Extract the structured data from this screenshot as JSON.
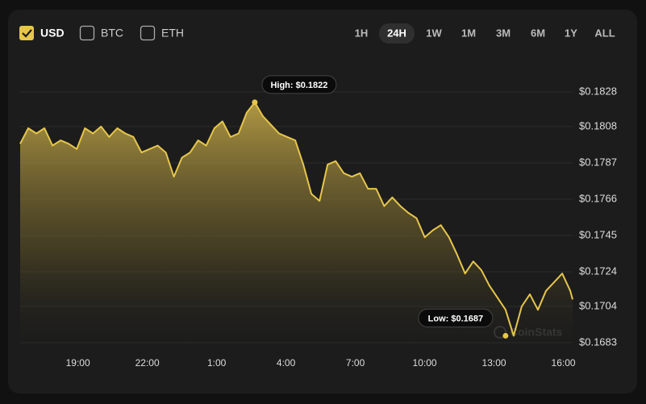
{
  "controls": {
    "currencies": [
      {
        "label": "USD",
        "checked": true
      },
      {
        "label": "BTC",
        "checked": false
      },
      {
        "label": "ETH",
        "checked": false
      }
    ],
    "timeframes": [
      {
        "label": "1H",
        "active": false
      },
      {
        "label": "24H",
        "active": true
      },
      {
        "label": "1W",
        "active": false
      },
      {
        "label": "1M",
        "active": false
      },
      {
        "label": "3M",
        "active": false
      },
      {
        "label": "6M",
        "active": false
      },
      {
        "label": "1Y",
        "active": false
      },
      {
        "label": "ALL",
        "active": false
      }
    ]
  },
  "watermark": "CoinStats",
  "chart_data": {
    "type": "area",
    "x": [
      16.5,
      16.85,
      17.2,
      17.55,
      17.9,
      18.25,
      18.6,
      18.95,
      19.3,
      19.65,
      20,
      20.35,
      20.7,
      21.05,
      21.4,
      21.75,
      22.1,
      22.45,
      22.8,
      23.15,
      23.5,
      23.85,
      24.2,
      24.55,
      24.9,
      25.25,
      25.6,
      25.95,
      26.3,
      26.65,
      27,
      27.35,
      27.7,
      28.05,
      28.4,
      28.75,
      29.1,
      29.45,
      29.8,
      30.15,
      30.5,
      30.85,
      31.2,
      31.55,
      31.9,
      32.25,
      32.6,
      32.95,
      33.3,
      33.65,
      34,
      34.35,
      34.7,
      35.05,
      35.4,
      35.75,
      36.1,
      36.45,
      36.8,
      37.15,
      37.5,
      37.85,
      38.2,
      38.55,
      38.9,
      39.25,
      39.6,
      39.95,
      40.3,
      40.4
    ],
    "series": [
      {
        "name": "USD",
        "color": "#e6c64b",
        "values": [
          0.1798,
          0.1807,
          0.1804,
          0.1807,
          0.1797,
          0.18,
          0.1798,
          0.1795,
          0.1807,
          0.1804,
          0.1808,
          0.1802,
          0.1807,
          0.1804,
          0.1802,
          0.1793,
          0.1795,
          0.1797,
          0.1793,
          0.1779,
          0.179,
          0.1793,
          0.18,
          0.1797,
          0.1807,
          0.1811,
          0.1802,
          0.1804,
          0.1816,
          0.1822,
          0.1814,
          0.1809,
          0.1804,
          0.1802,
          0.18,
          0.1786,
          0.1769,
          0.1765,
          0.1786,
          0.1788,
          0.1781,
          0.1779,
          0.1781,
          0.1772,
          0.1772,
          0.1762,
          0.1767,
          0.1762,
          0.1758,
          0.1755,
          0.1744,
          0.1748,
          0.1751,
          0.1744,
          0.1734,
          0.1723,
          0.173,
          0.1725,
          0.1716,
          0.1709,
          0.1702,
          0.1687,
          0.1704,
          0.1711,
          0.1702,
          0.1713,
          0.1718,
          0.1723,
          0.1713,
          0.1708
        ]
      }
    ],
    "xlim": [
      16.5,
      40.4
    ],
    "xticks": [
      {
        "value": 19,
        "label": "19:00"
      },
      {
        "value": 22,
        "label": "22:00"
      },
      {
        "value": 25,
        "label": "1:00"
      },
      {
        "value": 28,
        "label": "4:00"
      },
      {
        "value": 31,
        "label": "7:00"
      },
      {
        "value": 34,
        "label": "10:00"
      },
      {
        "value": 37,
        "label": "13:00"
      },
      {
        "value": 40,
        "label": "16:00"
      }
    ],
    "ylim": [
      0.1683,
      0.1828
    ],
    "yticks": [
      {
        "value": 0.1683,
        "label": "$0.1683"
      },
      {
        "value": 0.1704,
        "label": "$0.1704"
      },
      {
        "value": 0.1724,
        "label": "$0.1724"
      },
      {
        "value": 0.1745,
        "label": "$0.1745"
      },
      {
        "value": 0.1766,
        "label": "$0.1766"
      },
      {
        "value": 0.1787,
        "label": "$0.1787"
      },
      {
        "value": 0.1808,
        "label": "$0.1808"
      },
      {
        "value": 0.1828,
        "label": "$0.1828"
      }
    ],
    "grid": true,
    "annotations": [
      {
        "text": "High: $0.1822",
        "x": 26.65,
        "y": 0.1822
      },
      {
        "text": "Low: $0.1687",
        "x": 37.5,
        "y": 0.1687
      }
    ]
  }
}
